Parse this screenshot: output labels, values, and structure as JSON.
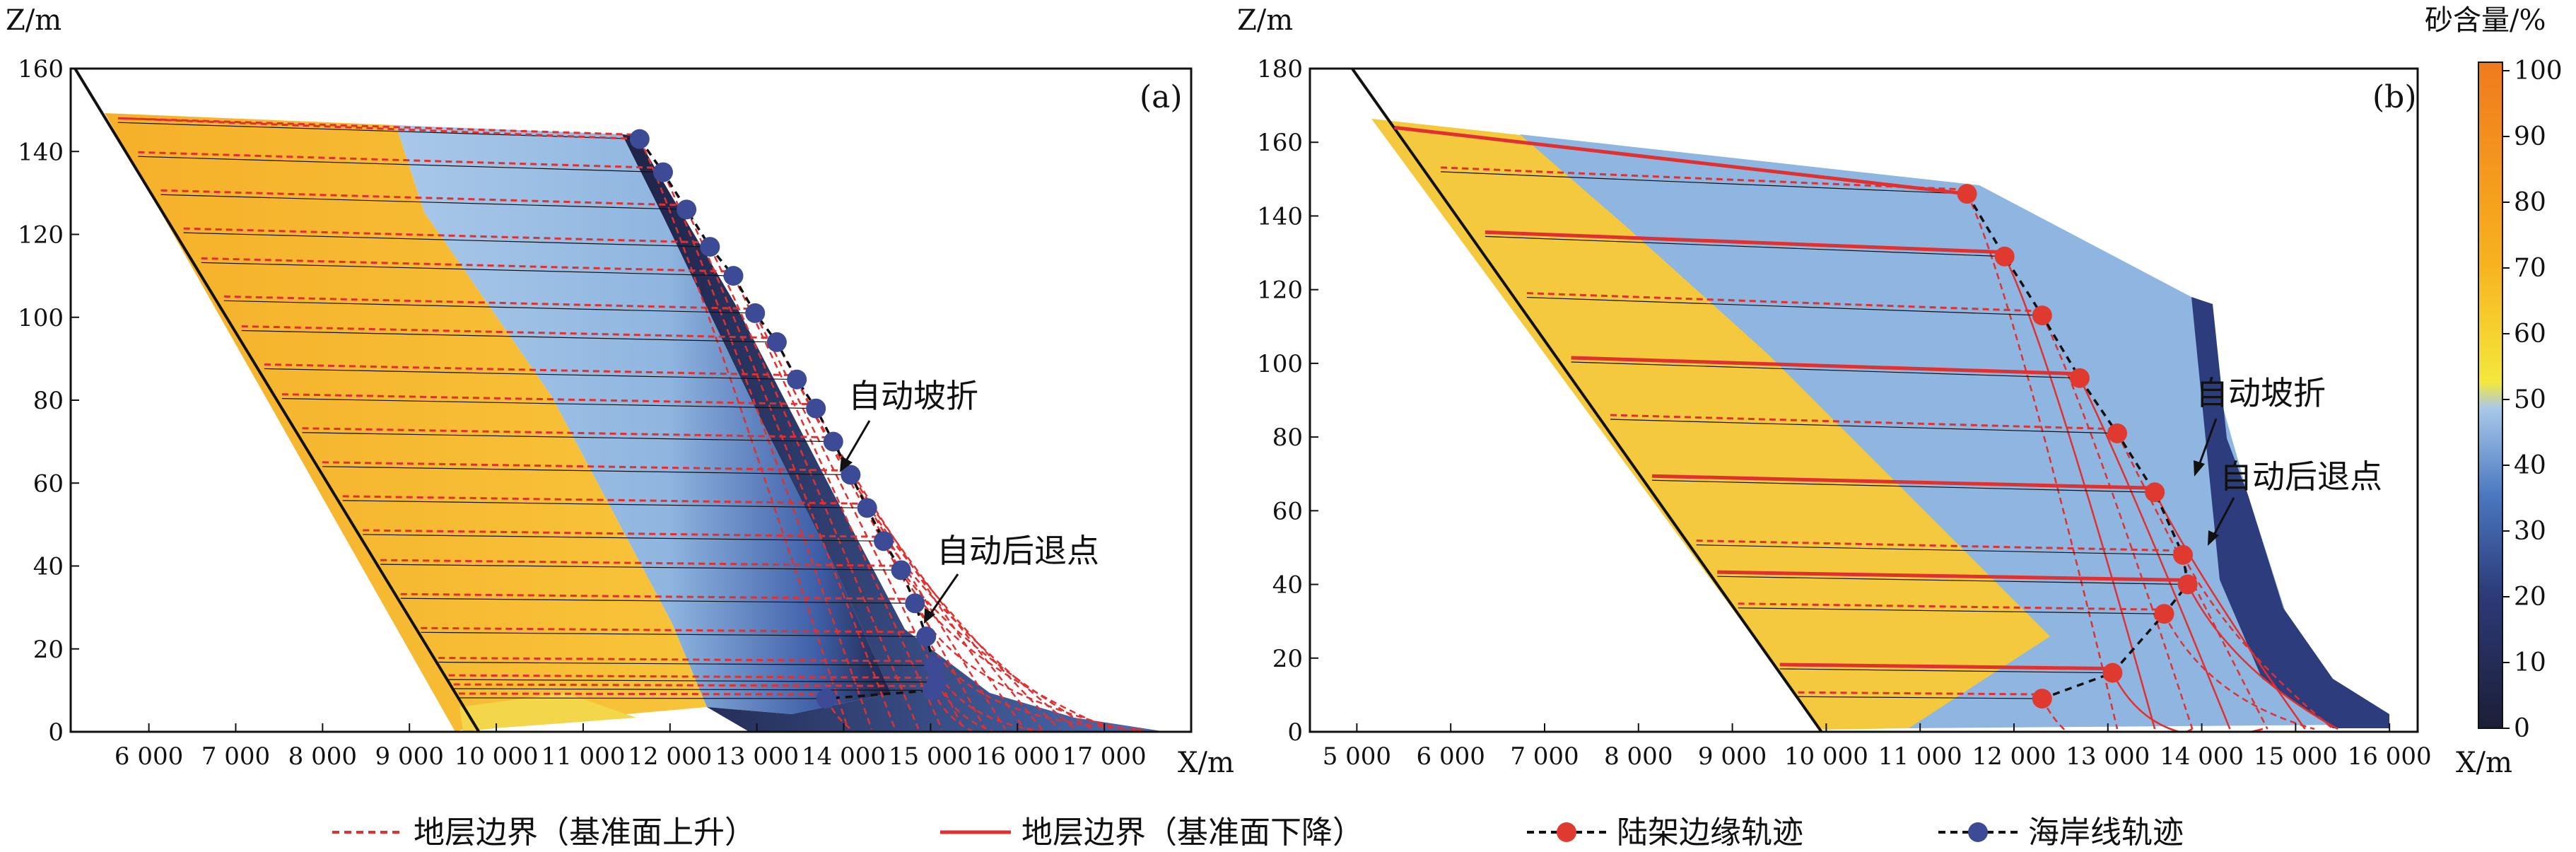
{
  "figure": {
    "legend": [
      {
        "label": "地层边界（基准面上升）",
        "style": "dashed-red"
      },
      {
        "label": "地层边界（基准面下降）",
        "style": "solid-red"
      },
      {
        "label": "陆架边缘轨迹",
        "style": "dashed-black-red-dot"
      },
      {
        "label": "海岸线轨迹",
        "style": "dashed-black-blue-dot"
      }
    ],
    "colorbar": {
      "title": "砂含量/%",
      "ticks": [
        "100",
        "90",
        "80",
        "70",
        "60",
        "50",
        "40",
        "30",
        "20",
        "10",
        "0"
      ],
      "colors": [
        "#1c1e36",
        "#2c3a78",
        "#4a78c0",
        "#a8c8ea",
        "#f4e83c",
        "#f7b21e",
        "#f07a1e"
      ]
    },
    "colors": {
      "boundary_red": "#e03030",
      "shelf_edge_dot": "#e03a30",
      "shoreline_dot": "#3d4a96",
      "trajectory_black": "#111111"
    }
  },
  "chart_data": [
    {
      "type": "scatter",
      "panel_tag": "(a)",
      "xlabel": "X/m",
      "ylabel": "Z/m",
      "xlim": [
        5100,
        18000
      ],
      "ylim": [
        0,
        160
      ],
      "xticks": [
        6000,
        7000,
        8000,
        9000,
        10000,
        11000,
        12000,
        13000,
        14000,
        15000,
        16000,
        17000
      ],
      "xtick_labels": [
        "6 000",
        "7 000",
        "8 000",
        "9 000",
        "10 000",
        "11 000",
        "12 000",
        "13 000",
        "14 000",
        "15 000",
        "16 000",
        "17 000"
      ],
      "yticks": [
        0,
        20,
        40,
        60,
        80,
        100,
        120,
        140,
        160
      ],
      "annotations": [
        {
          "text": "自动坡折",
          "x": 14000,
          "y": 63
        },
        {
          "text": "自动后退点",
          "x": 15000,
          "y": 25
        }
      ],
      "series": [
        {
          "name": "海岸线轨迹",
          "marker": "blue-dot",
          "x": [
            11650,
            11920,
            12190,
            12460,
            12730,
            12980,
            13230,
            13460,
            13680,
            13880,
            14080,
            14270,
            14460,
            14660,
            14820,
            14950,
            15040,
            15070,
            15020,
            13800
          ],
          "y": [
            143,
            135,
            126,
            117,
            110,
            101,
            94,
            85,
            78,
            70,
            62,
            54,
            46,
            39,
            31,
            23,
            16,
            12,
            10,
            8
          ]
        }
      ],
      "domain": {
        "basement": {
          "x": [
            5150,
            9800
          ],
          "y": [
            160,
            0
          ]
        },
        "stratum_top": [
          [
            5700,
            148
          ],
          [
            11650,
            143
          ]
        ]
      }
    },
    {
      "type": "scatter",
      "panel_tag": "(b)",
      "xlabel": "X/m",
      "ylabel": "Z/m",
      "xlim": [
        4500,
        16300
      ],
      "ylim": [
        0,
        180
      ],
      "xticks": [
        5000,
        6000,
        7000,
        8000,
        9000,
        10000,
        11000,
        12000,
        13000,
        14000,
        15000,
        16000
      ],
      "xtick_labels": [
        "5 000",
        "6 000",
        "7 000",
        "8 000",
        "9 000",
        "10 000",
        "11 000",
        "12 000",
        "13 000",
        "14 000",
        "15 000",
        "16 000"
      ],
      "yticks": [
        0,
        20,
        40,
        60,
        80,
        100,
        120,
        140,
        160,
        180
      ],
      "annotations": [
        {
          "text": "自动坡折",
          "x": 13900,
          "y": 83
        },
        {
          "text": "自动后退点",
          "x": 14300,
          "y": 65
        }
      ],
      "series": [
        {
          "name": "陆架边缘轨迹",
          "marker": "red-dot",
          "x": [
            11500,
            11900,
            12300,
            12700,
            13100,
            13500,
            13800,
            13850,
            13600,
            13050,
            12300
          ],
          "y": [
            146,
            129,
            113,
            96,
            81,
            65,
            48,
            40,
            32,
            16,
            9
          ]
        }
      ],
      "domain": {
        "basement": {
          "x": [
            4950,
            9950
          ],
          "y": [
            180,
            0
          ]
        },
        "stratum_top": [
          [
            5400,
            164
          ],
          [
            11500,
            146
          ]
        ]
      }
    }
  ]
}
